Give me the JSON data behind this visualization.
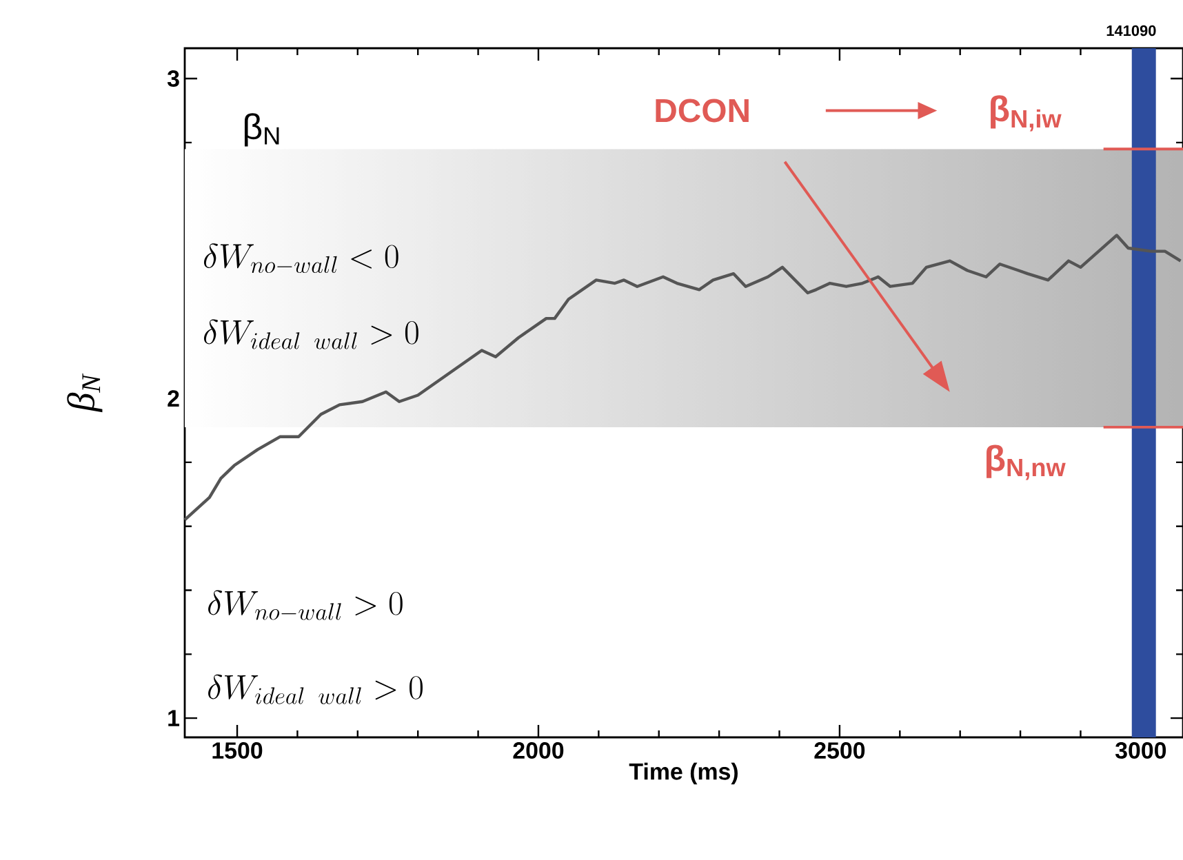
{
  "chart_data": {
    "type": "line",
    "xlabel": "Time (ms)",
    "ylabel": "β$_{N}$",
    "xlim": [
      1413,
      3070
    ],
    "ylim": [
      0.94,
      3.095
    ],
    "xticks": [
      1500,
      2000,
      2500,
      3000
    ],
    "yticks": [
      1,
      2,
      3
    ],
    "line_style": "solid",
    "series": [
      {
        "color": "#555555",
        "x": [
          1413,
          1454,
          1473,
          1495,
          1534,
          1571,
          1602,
          1639,
          1670,
          1708,
          1747,
          1769,
          1800,
          1853,
          1906,
          1929,
          1967,
          2013,
          2027,
          2050,
          2096,
          2127,
          2142,
          2164,
          2207,
          2230,
          2267,
          2290,
          2324,
          2344,
          2381,
          2405,
          2447,
          2461,
          2484,
          2511,
          2538,
          2564,
          2584,
          2621,
          2644,
          2683,
          2712,
          2743,
          2766,
          2797,
          2812,
          2846,
          2880,
          2900,
          2960,
          2979,
          3017,
          3040,
          3066
        ],
        "values": [
          1.62,
          1.69,
          1.75,
          1.79,
          1.84,
          1.88,
          1.88,
          1.95,
          1.98,
          1.99,
          2.02,
          1.99,
          2.01,
          2.08,
          2.15,
          2.13,
          2.19,
          2.25,
          2.25,
          2.31,
          2.37,
          2.36,
          2.37,
          2.35,
          2.38,
          2.36,
          2.34,
          2.37,
          2.39,
          2.35,
          2.38,
          2.41,
          2.33,
          2.34,
          2.36,
          2.35,
          2.36,
          2.38,
          2.35,
          2.36,
          2.41,
          2.43,
          2.4,
          2.38,
          2.42,
          2.4,
          2.39,
          2.37,
          2.43,
          2.41,
          2.51,
          2.47,
          2.46,
          2.46,
          2.43
        ]
      },
      {
        "name": "β$_{N,iw}$",
        "color": "#e05a55",
        "x": [
          2938,
          3070
        ],
        "values": [
          2.78,
          2.78
        ]
      },
      {
        "name": "β$_{N,nw}$",
        "color": "#e05a55",
        "x": [
          2938,
          3070
        ],
        "values": [
          1.91,
          1.91
        ]
      }
    ],
    "bands": [
      {
        "axis": "y",
        "from": 1.91,
        "to": 2.78,
        "color": "#b4b4b4"
      },
      {
        "axis": "x",
        "from": 2985,
        "to": 3025,
        "color": "#2e4d9e"
      }
    ],
    "annotations": [
      "β$_{N}$",
      "DCON",
      "\\delta W_{no-wall} < 0",
      "\\delta W_{ideal\\;\\;wall} > 0",
      "\\delta W_{no-wall} > 0",
      "\\delta W_{ideal\\;\\;wall} > 0",
      "141090"
    ]
  }
}
